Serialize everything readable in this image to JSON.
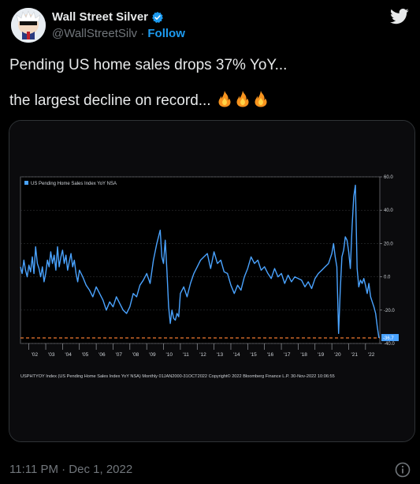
{
  "author": {
    "display_name": "Wall Street Silver",
    "handle": "@WallStreetSilv",
    "separator": "·",
    "follow_label": "Follow",
    "verified": true
  },
  "tweet": {
    "line1": "Pending US home sales drops 37% YoY...",
    "line2": "the largest decline on record...",
    "emoji": [
      "fire-icon",
      "fire-icon",
      "fire-icon"
    ]
  },
  "footer": {
    "timestamp": "11:11 PM · Dec 1, 2022"
  },
  "colors": {
    "accent": "#1d9bf0",
    "line": "#4aa3ff",
    "dashed": "#f07a30",
    "chart_bg": "#000000"
  },
  "chart_data": {
    "type": "line",
    "legend": "US Pending Home Sales Index YoY NSA",
    "footer_note": "USPHTYOY Index (US Pending Home Sales Index YoY NSA) Monthly 01JAN2000-31OCT2022 Copyright© 2022 Bloomberg Finance L.P. 30-Nov-2022 10:06:55",
    "x_tick_labels": [
      "'02",
      "'03",
      "'04",
      "'05",
      "'06",
      "'07",
      "'08",
      "'09",
      "'10",
      "'11",
      "'12",
      "'13",
      "'14",
      "'15",
      "'16",
      "'17",
      "'18",
      "'19",
      "'20",
      "'21",
      "'22"
    ],
    "x_range": [
      2001.5,
      2022.85
    ],
    "y_tick_labels": [
      "60.0",
      "40.0",
      "20.0",
      "0.0",
      "-20.0",
      "-40.0"
    ],
    "ylim": [
      -40,
      60
    ],
    "last_value_label": "-36.7",
    "last_value": -36.7,
    "series": [
      {
        "x": [
          2001.5,
          2001.6,
          2001.7,
          2001.8,
          2001.9,
          2002.0,
          2002.1,
          2002.2,
          2002.3,
          2002.4,
          2002.5,
          2002.6,
          2002.7,
          2002.8,
          2002.9,
          2003.0,
          2003.1,
          2003.2,
          2003.3,
          2003.4,
          2003.5,
          2003.6,
          2003.7,
          2003.8,
          2003.9,
          2004.0,
          2004.1,
          2004.2,
          2004.3,
          2004.4,
          2004.5,
          2004.6,
          2004.7,
          2004.8,
          2004.9,
          2005.0,
          2005.2,
          2005.4,
          2005.6,
          2005.8,
          2006.0,
          2006.2,
          2006.4,
          2006.6,
          2006.8,
          2007.0,
          2007.2,
          2007.4,
          2007.6,
          2007.8,
          2008.0,
          2008.2,
          2008.4,
          2008.6,
          2008.8,
          2009.0,
          2009.2,
          2009.4,
          2009.6,
          2009.8,
          2009.9,
          2010.0,
          2010.1,
          2010.2,
          2010.3,
          2010.4,
          2010.5,
          2010.6,
          2010.7,
          2010.8,
          2010.9,
          2011.0,
          2011.2,
          2011.4,
          2011.6,
          2011.8,
          2012.0,
          2012.2,
          2012.4,
          2012.6,
          2012.8,
          2013.0,
          2013.2,
          2013.4,
          2013.6,
          2013.8,
          2014.0,
          2014.2,
          2014.4,
          2014.6,
          2014.8,
          2015.0,
          2015.2,
          2015.4,
          2015.6,
          2015.8,
          2016.0,
          2016.2,
          2016.4,
          2016.6,
          2016.8,
          2017.0,
          2017.2,
          2017.4,
          2017.6,
          2017.8,
          2018.0,
          2018.2,
          2018.4,
          2018.6,
          2018.8,
          2019.0,
          2019.2,
          2019.4,
          2019.6,
          2019.8,
          2020.0,
          2020.1,
          2020.2,
          2020.3,
          2020.4,
          2020.5,
          2020.6,
          2020.7,
          2020.8,
          2020.9,
          2021.0,
          2021.1,
          2021.2,
          2021.3,
          2021.4,
          2021.5,
          2021.6,
          2021.7,
          2021.8,
          2021.9,
          2022.0,
          2022.1,
          2022.2,
          2022.3,
          2022.4,
          2022.5,
          2022.6,
          2022.7,
          2022.8
        ],
        "values": [
          6,
          2,
          10,
          4,
          0,
          7,
          3,
          12,
          2,
          18,
          8,
          5,
          0,
          6,
          -3,
          2,
          10,
          6,
          15,
          8,
          13,
          4,
          18,
          6,
          12,
          16,
          8,
          13,
          4,
          9,
          14,
          6,
          10,
          2,
          -3,
          4,
          0,
          -5,
          -8,
          -12,
          -6,
          -10,
          -14,
          -20,
          -15,
          -18,
          -12,
          -16,
          -20,
          -22,
          -18,
          -10,
          -12,
          -5,
          -2,
          2,
          -4,
          10,
          20,
          28,
          12,
          8,
          22,
          4,
          -18,
          -28,
          -20,
          -25,
          -26,
          -22,
          -24,
          -10,
          -6,
          -12,
          -4,
          2,
          6,
          10,
          12,
          14,
          5,
          15,
          8,
          10,
          3,
          2,
          -5,
          -10,
          -5,
          -8,
          0,
          5,
          12,
          8,
          10,
          4,
          6,
          2,
          -1,
          5,
          0,
          2,
          -4,
          1,
          -3,
          0,
          -1,
          -2,
          -6,
          -3,
          -7,
          -1,
          2,
          4,
          6,
          8,
          14,
          20,
          12,
          6,
          -34,
          -8,
          12,
          16,
          24,
          22,
          15,
          5,
          30,
          48,
          55,
          5,
          -6,
          -2,
          -4,
          -1,
          -5,
          -10,
          -4,
          -12,
          -15,
          -18,
          -22,
          -30,
          -36.7
        ]
      }
    ]
  }
}
